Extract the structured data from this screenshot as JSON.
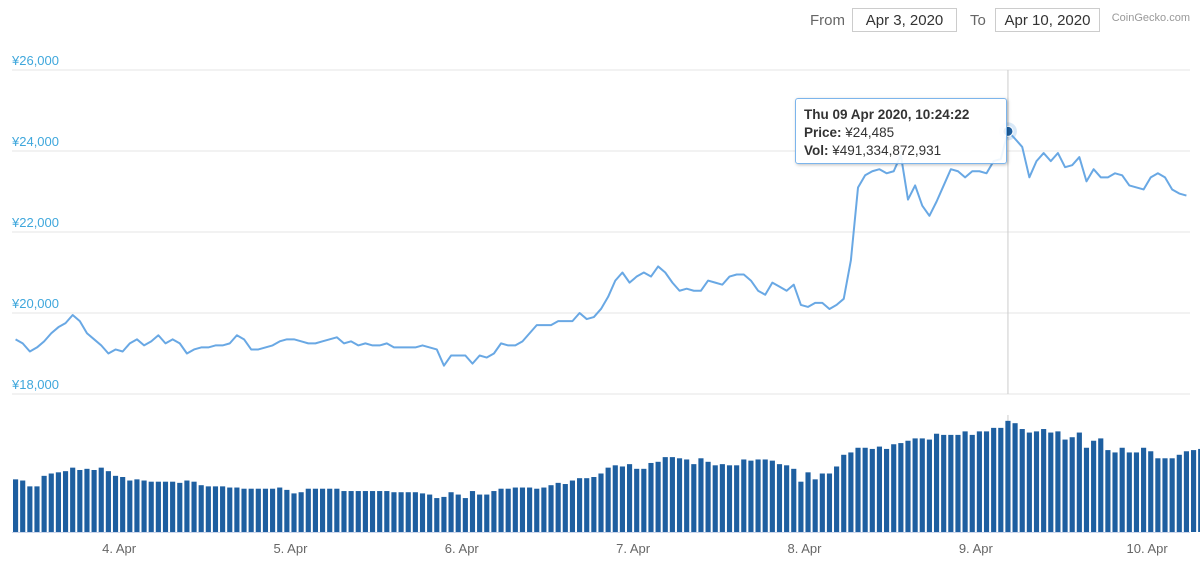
{
  "header": {
    "from_label": "From",
    "from_value": "Apr 3, 2020",
    "to_label": "To",
    "to_value": "Apr 10, 2020",
    "credit": "CoinGecko.com"
  },
  "colors": {
    "price_line": "#69a8e4",
    "volume_bar": "#1e5fa0",
    "axis_text": "#3fa7dc",
    "grid": "#e6e6e6",
    "crosshair": "#cccccc",
    "marker": "#1e5fa0"
  },
  "tooltip": {
    "date": "Thu 09 Apr 2020, 10:24:22",
    "price_label": "Price:",
    "price_value": "¥24,485",
    "vol_label": "Vol:",
    "vol_value": "¥491,334,872,931"
  },
  "chart_data": {
    "type": "line",
    "title": "",
    "xlabel": "",
    "ylabel": "",
    "x_range": [
      "2020-04-03 09:00",
      "2020-04-10 14:00"
    ],
    "x_ticks": [
      "4. Apr",
      "5. Apr",
      "6. Apr",
      "7. Apr",
      "8. Apr",
      "9. Apr",
      "10. Apr"
    ],
    "y_ticks": [
      "¥18,000",
      "¥20,000",
      "¥22,000",
      "¥24,000",
      "¥26,000"
    ],
    "ylim": [
      18000,
      26000
    ],
    "grid": true,
    "series": [
      {
        "kind": "price",
        "y": [
          19350,
          19250,
          19050,
          19150,
          19300,
          19500,
          19650,
          19750,
          19950,
          19800,
          19500,
          19350,
          19200,
          19000,
          19100,
          19050,
          19250,
          19350,
          19200,
          19300,
          19450,
          19250,
          19350,
          19250,
          19000,
          19100,
          19150,
          19150,
          19200,
          19200,
          19250,
          19450,
          19350,
          19100,
          19100,
          19150,
          19200,
          19300,
          19350,
          19350,
          19300,
          19250,
          19250,
          19300,
          19350,
          19400,
          19250,
          19300,
          19200,
          19250,
          19200,
          19200,
          19250,
          19150,
          19150,
          19150,
          19150,
          19200,
          19150,
          19100,
          18700,
          18950,
          18950,
          18950,
          18750,
          18950,
          18900,
          19000,
          19250,
          19200,
          19200,
          19300,
          19500,
          19700,
          19700,
          19700,
          19800,
          19800,
          19800,
          20000,
          19850,
          19900,
          20100,
          20400,
          20800,
          21000,
          20750,
          20900,
          21000,
          20900,
          21150,
          21000,
          20750,
          20550,
          20600,
          20550,
          20550,
          20800,
          20750,
          20700,
          20900,
          20950,
          20950,
          20800,
          20550,
          20450,
          20750,
          20650,
          20550,
          20700,
          20200,
          20150,
          20250,
          20250,
          20100,
          20200,
          20350,
          21300,
          23100,
          23400,
          23500,
          23550,
          23450,
          23500,
          23900,
          22800,
          23150,
          22650,
          22400,
          22750,
          23150,
          23550,
          23500,
          23350,
          23500,
          23500,
          23450,
          23750,
          23800,
          24485,
          24300,
          24100,
          23350,
          23750,
          23950,
          23750,
          23950,
          23600,
          23650,
          23850,
          23250,
          23550,
          23350,
          23350,
          23450,
          23400,
          23150,
          23100,
          23050,
          23350,
          23450,
          23350,
          23050,
          22950,
          22900
        ]
      },
      {
        "kind": "volume",
        "y": [
          0.45,
          0.44,
          0.39,
          0.39,
          0.48,
          0.5,
          0.51,
          0.52,
          0.55,
          0.53,
          0.54,
          0.53,
          0.55,
          0.52,
          0.48,
          0.47,
          0.44,
          0.45,
          0.44,
          0.43,
          0.43,
          0.43,
          0.43,
          0.42,
          0.44,
          0.43,
          0.4,
          0.39,
          0.39,
          0.39,
          0.38,
          0.38,
          0.37,
          0.37,
          0.37,
          0.37,
          0.37,
          0.38,
          0.36,
          0.33,
          0.34,
          0.37,
          0.37,
          0.37,
          0.37,
          0.37,
          0.35,
          0.35,
          0.35,
          0.35,
          0.35,
          0.35,
          0.35,
          0.34,
          0.34,
          0.34,
          0.34,
          0.33,
          0.32,
          0.29,
          0.3,
          0.34,
          0.32,
          0.29,
          0.35,
          0.32,
          0.32,
          0.35,
          0.37,
          0.37,
          0.38,
          0.38,
          0.38,
          0.37,
          0.38,
          0.4,
          0.42,
          0.41,
          0.44,
          0.46,
          0.46,
          0.47,
          0.5,
          0.55,
          0.57,
          0.56,
          0.58,
          0.54,
          0.54,
          0.59,
          0.6,
          0.64,
          0.64,
          0.63,
          0.62,
          0.58,
          0.63,
          0.6,
          0.57,
          0.58,
          0.57,
          0.57,
          0.62,
          0.61,
          0.62,
          0.62,
          0.61,
          0.58,
          0.57,
          0.54,
          0.43,
          0.51,
          0.45,
          0.5,
          0.5,
          0.56,
          0.66,
          0.68,
          0.72,
          0.72,
          0.71,
          0.73,
          0.71,
          0.75,
          0.76,
          0.78,
          0.8,
          0.8,
          0.79,
          0.84,
          0.83,
          0.83,
          0.83,
          0.86,
          0.83,
          0.86,
          0.86,
          0.89,
          0.89,
          0.95,
          0.93,
          0.88,
          0.85,
          0.86,
          0.88,
          0.85,
          0.86,
          0.79,
          0.81,
          0.85,
          0.72,
          0.78,
          0.8,
          0.7,
          0.68,
          0.72,
          0.68,
          0.68,
          0.72,
          0.69,
          0.63,
          0.63,
          0.63,
          0.66,
          0.69,
          0.7,
          0.71,
          0.69
        ]
      }
    ]
  }
}
